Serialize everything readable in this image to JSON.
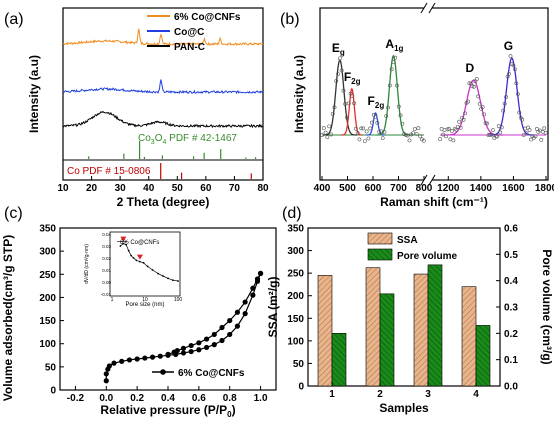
{
  "chart_data": [
    {
      "panel": "(a)",
      "type": "line",
      "xlabel": "2 Theta (degree)",
      "ylabel": "Intensity (a.u)",
      "xlim": [
        10,
        80
      ],
      "xticks": [
        "10",
        "20",
        "30",
        "40",
        "50",
        "60",
        "70",
        "80"
      ],
      "series": [
        {
          "name": "6% Co@CNFs",
          "color": "#f28c1e",
          "peaks": [
            36.5,
            44.3,
            59.5,
            65
          ]
        },
        {
          "name": "Co@C",
          "color": "#1f3fe0",
          "peaks": [
            44.3
          ]
        },
        {
          "name": "PAN-C",
          "color": "#000000",
          "peaks": [
            24.5
          ]
        }
      ],
      "references": [
        {
          "label_main": "Co",
          "label_sub": "3",
          "label_mid": "O",
          "label_sub2": "4",
          "label_tail": " PDF # 42-1467",
          "color": "#3a8a2f",
          "lines": [
            [
              19,
              0.15
            ],
            [
              31.3,
              0.3
            ],
            [
              36.8,
              1.0
            ],
            [
              38.5,
              0.12
            ],
            [
              44.8,
              0.2
            ],
            [
              55.7,
              0.15
            ],
            [
              59.4,
              0.35
            ],
            [
              65.2,
              0.55
            ],
            [
              74,
              0.08
            ],
            [
              77.4,
              0.1
            ]
          ]
        },
        {
          "label": "Co PDF # 15-0806",
          "color": "#c00000",
          "lines": [
            [
              44.2,
              1.0
            ],
            [
              51.5,
              0.4
            ],
            [
              75.9,
              0.35
            ]
          ]
        }
      ]
    },
    {
      "panel": "(b)",
      "type": "scatter",
      "xlabel": "Raman shift (cm⁻¹)",
      "ylabel": "Intensity (a.u)",
      "xticks_left": [
        "400",
        "500",
        "600",
        "700",
        "800"
      ],
      "xticks_right": [
        "1200",
        "1400",
        "1600",
        "1800"
      ],
      "peaks": [
        {
          "label": "E",
          "sub": "g",
          "x": 470,
          "h": 0.68,
          "w": 22,
          "color": "#333333"
        },
        {
          "label": "F",
          "sub": "2g",
          "x": 517,
          "h": 0.42,
          "w": 14,
          "color": "#e0302a"
        },
        {
          "label": "F",
          "sub": "2g",
          "x": 610,
          "h": 0.2,
          "w": 12,
          "color": "#2a4ee0"
        },
        {
          "label": "A",
          "sub": "1g",
          "x": 680,
          "h": 0.72,
          "w": 22,
          "color": "#2a8a3a"
        },
        {
          "label": "D",
          "sub": "",
          "x": 1355,
          "h": 0.5,
          "w": 60,
          "color": "#cc33cc"
        },
        {
          "label": "G",
          "sub": "",
          "x": 1590,
          "h": 0.7,
          "w": 45,
          "color": "#3a2ad0"
        }
      ]
    },
    {
      "panel": "(c)",
      "type": "line",
      "xlabel_main": "Relative pressure (P/P",
      "xlabel_sub": "0",
      "xlabel_tail": ")",
      "ylabel": "Volume adsorbed(cm³/g STP)",
      "xlim": [
        -0.3,
        1.1
      ],
      "ylim": [
        0,
        350
      ],
      "xticks": [
        "-0.2",
        "0.0",
        "0.2",
        "0.4",
        "0.6",
        "0.8",
        "1.0"
      ],
      "yticks": [
        "0",
        "50",
        "100",
        "150",
        "200",
        "250",
        "300",
        "350"
      ],
      "legend": "6% Co@CNFs",
      "adsorption": [
        [
          0.0,
          20
        ],
        [
          0.0,
          35
        ],
        [
          0.01,
          45
        ],
        [
          0.02,
          52
        ],
        [
          0.05,
          58
        ],
        [
          0.1,
          62
        ],
        [
          0.15,
          65
        ],
        [
          0.2,
          67
        ],
        [
          0.25,
          69
        ],
        [
          0.3,
          71
        ],
        [
          0.35,
          73
        ],
        [
          0.4,
          75
        ],
        [
          0.45,
          77
        ],
        [
          0.5,
          80
        ],
        [
          0.55,
          83
        ],
        [
          0.6,
          87
        ],
        [
          0.65,
          92
        ],
        [
          0.7,
          98
        ],
        [
          0.75,
          107
        ],
        [
          0.8,
          120
        ],
        [
          0.85,
          138
        ],
        [
          0.9,
          165
        ],
        [
          0.95,
          205
        ],
        [
          0.98,
          235
        ],
        [
          1.0,
          252
        ]
      ],
      "desorption": [
        [
          1.0,
          252
        ],
        [
          0.98,
          240
        ],
        [
          0.95,
          220
        ],
        [
          0.9,
          190
        ],
        [
          0.85,
          168
        ],
        [
          0.8,
          150
        ],
        [
          0.75,
          135
        ],
        [
          0.7,
          120
        ],
        [
          0.65,
          110
        ],
        [
          0.6,
          102
        ],
        [
          0.55,
          96
        ],
        [
          0.5,
          90
        ],
        [
          0.46,
          85
        ],
        [
          0.44,
          82
        ],
        [
          0.4,
          77
        ]
      ],
      "inset": {
        "legend": "6% Co@CNFs",
        "xlabel": "Pore size (nm)",
        "ylabel": "dV/dD (cm³/g·nm)",
        "xticks": [
          "1",
          "10",
          "100"
        ],
        "yticks": [
          "-0.01",
          "0.00",
          "0.01",
          "0.02",
          "0.03",
          "0.04"
        ],
        "ylim": [
          -0.01,
          0.04
        ],
        "points": [
          [
            1.8,
            0.03
          ],
          [
            2.2,
            0.032
          ],
          [
            2.7,
            0.031
          ],
          [
            3.2,
            0.026
          ],
          [
            3.8,
            0.022
          ],
          [
            4.5,
            0.02
          ],
          [
            5.5,
            0.018
          ],
          [
            7,
            0.017
          ],
          [
            9,
            0.016
          ],
          [
            12,
            0.013
          ],
          [
            17,
            0.01
          ],
          [
            25,
            0.007
          ],
          [
            35,
            0.005
          ],
          [
            50,
            0.003
          ],
          [
            70,
            0.0015
          ],
          [
            100,
            0.0008
          ]
        ],
        "markers": [
          2.1,
          7.2
        ]
      }
    },
    {
      "panel": "(d)",
      "type": "bar",
      "xlabel": "Samples",
      "ylabel": "SSA (m²/g)",
      "y2label": "Pore volume (cm³/g)",
      "categories": [
        "1",
        "2",
        "3",
        "4"
      ],
      "ylim": [
        0,
        350
      ],
      "y2lim": [
        0,
        0.6
      ],
      "yticks": [
        "0",
        "50",
        "100",
        "150",
        "200",
        "250",
        "300",
        "350"
      ],
      "y2ticks": [
        "0.0",
        "0.1",
        "0.2",
        "0.3",
        "0.4",
        "0.5",
        "0.6"
      ],
      "series": [
        {
          "name": "SSA",
          "axis": "left",
          "color": "#e8b48c",
          "values": [
            245,
            262,
            248,
            220
          ]
        },
        {
          "name": "Pore volume",
          "axis": "right",
          "color": "#1a7a1a",
          "values": [
            0.2,
            0.35,
            0.46,
            0.23
          ]
        }
      ]
    }
  ]
}
